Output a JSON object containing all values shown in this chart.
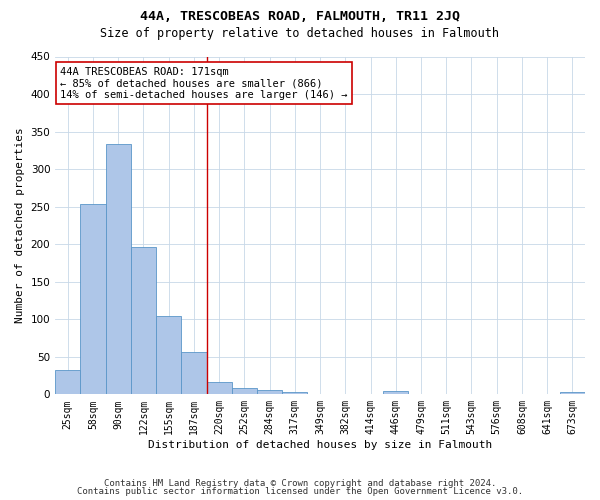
{
  "title": "44A, TRESCOBEAS ROAD, FALMOUTH, TR11 2JQ",
  "subtitle": "Size of property relative to detached houses in Falmouth",
  "xlabel": "Distribution of detached houses by size in Falmouth",
  "ylabel": "Number of detached properties",
  "categories": [
    "25sqm",
    "58sqm",
    "90sqm",
    "122sqm",
    "155sqm",
    "187sqm",
    "220sqm",
    "252sqm",
    "284sqm",
    "317sqm",
    "349sqm",
    "382sqm",
    "414sqm",
    "446sqm",
    "479sqm",
    "511sqm",
    "543sqm",
    "576sqm",
    "608sqm",
    "641sqm",
    "673sqm"
  ],
  "values": [
    33,
    254,
    333,
    196,
    105,
    57,
    17,
    9,
    6,
    3,
    1,
    0,
    0,
    4,
    0,
    0,
    0,
    0,
    0,
    0,
    3
  ],
  "bar_color": "#aec6e8",
  "bar_edge_color": "#5a96c8",
  "vline_x": 5.5,
  "vline_color": "#cc0000",
  "annotation_box_line1": "44A TRESCOBEAS ROAD: 171sqm",
  "annotation_box_line2": "← 85% of detached houses are smaller (866)",
  "annotation_box_line3": "14% of semi-detached houses are larger (146) →",
  "annotation_box_color": "#cc0000",
  "ylim": [
    0,
    450
  ],
  "yticks": [
    0,
    50,
    100,
    150,
    200,
    250,
    300,
    350,
    400,
    450
  ],
  "footer_line1": "Contains HM Land Registry data © Crown copyright and database right 2024.",
  "footer_line2": "Contains public sector information licensed under the Open Government Licence v3.0.",
  "background_color": "#ffffff",
  "grid_color": "#c8d8e8",
  "title_fontsize": 9.5,
  "subtitle_fontsize": 8.5,
  "annotation_fontsize": 7.5,
  "axis_label_fontsize": 8,
  "tick_fontsize": 7,
  "footer_fontsize": 6.5
}
